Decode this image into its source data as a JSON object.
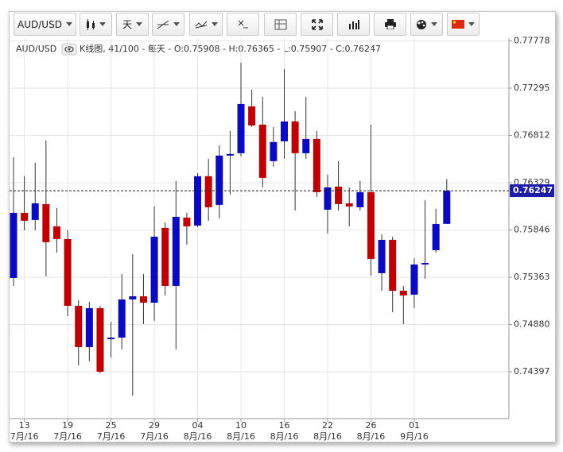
{
  "toolbar": {
    "symbol": "AUD/USD",
    "period": "天"
  },
  "chart_data": {
    "type": "candlestick",
    "symbol": "AUD/USD",
    "info": "K线图, 41/100 - 每天 - O:0.75908 - H:0.76365 - L:0.75907 - C:0.76247",
    "categories": [
      null,
      "13",
      null,
      null,
      null,
      "19",
      null,
      null,
      null,
      "25",
      null,
      null,
      null,
      "29",
      null,
      null,
      null,
      "04",
      null,
      null,
      null,
      "10",
      null,
      null,
      null,
      "16",
      null,
      null,
      null,
      "22",
      null,
      null,
      null,
      "26",
      null,
      null,
      null,
      "01",
      null,
      null,
      null
    ],
    "months": [
      null,
      "7月/16",
      null,
      null,
      null,
      "7月/16",
      null,
      null,
      null,
      "7月/16",
      null,
      null,
      null,
      "7月/16",
      null,
      null,
      null,
      "8月/16",
      null,
      null,
      null,
      "8月/16",
      null,
      null,
      null,
      "8月/16",
      null,
      null,
      null,
      "8月/16",
      null,
      null,
      null,
      "8月/16",
      null,
      null,
      null,
      "9月/16",
      null,
      null,
      null
    ],
    "open": [
      0.75355,
      0.76021,
      0.75948,
      0.7611,
      0.75883,
      0.75753,
      0.75071,
      0.74649,
      0.75047,
      0.7473,
      0.74746,
      0.75136,
      0.75168,
      0.75103,
      0.75867,
      0.75274,
      0.75972,
      0.75891,
      0.76395,
      0.76102,
      0.76606,
      0.7663,
      0.77109,
      0.76922,
      0.76549,
      0.76752,
      0.76955,
      0.7663,
      0.76776,
      0.76053,
      0.76289,
      0.76118,
      0.76078,
      0.76232,
      0.75404,
      0.75745,
      0.75225,
      0.75185,
      0.75493,
      0.75639,
      0.75908
    ],
    "high": [
      0.76589,
      0.76395,
      0.76533,
      0.7676,
      0.7607,
      0.75842,
      0.75128,
      0.75112,
      0.75071,
      0.74909,
      0.75396,
      0.75599,
      0.75396,
      0.76086,
      0.75924,
      0.76346,
      0.76021,
      0.76427,
      0.76573,
      0.76711,
      0.76857,
      0.77556,
      0.7728,
      0.77207,
      0.76898,
      0.77491,
      0.7706,
      0.77207,
      0.76857,
      0.76411,
      0.76549,
      0.76281,
      0.76346,
      0.76922,
      0.75802,
      0.75777,
      0.75274,
      0.75558,
      0.76151,
      0.76062,
      0.76365
    ],
    "low": [
      0.75274,
      0.75842,
      0.75842,
      0.75371,
      0.75615,
      0.74965,
      0.74462,
      0.74503,
      0.74381,
      0.74543,
      0.74624,
      0.74153,
      0.74884,
      0.74917,
      0.75177,
      0.74624,
      0.75696,
      0.75875,
      0.7594,
      0.75964,
      0.76208,
      0.76597,
      0.76898,
      0.76281,
      0.76492,
      0.76573,
      0.76045,
      0.76573,
      0.76183,
      0.7581,
      0.76045,
      0.75883,
      0.76045,
      0.7538,
      0.75225,
      0.75006,
      0.74884,
      0.75047,
      0.75347,
      0.75615,
      0.75907
    ],
    "close": [
      0.76021,
      0.7594,
      0.76118,
      0.75721,
      0.75753,
      0.75071,
      0.74649,
      0.75047,
      0.74397,
      0.74746,
      0.75136,
      0.75168,
      0.75103,
      0.75777,
      0.75274,
      0.7598,
      0.75883,
      0.76395,
      0.76078,
      0.76606,
      0.76622,
      0.77133,
      0.76914,
      0.76378,
      0.76744,
      0.76955,
      0.7663,
      0.76776,
      0.76232,
      0.76281,
      0.7611,
      0.76086,
      0.76232,
      0.7555,
      0.75745,
      0.75225,
      0.75177,
      0.75493,
      0.75509,
      0.75907,
      0.76247
    ],
    "up_color": "#0a0ac0",
    "down_color": "#c00000",
    "current_price": 0.76247,
    "current_price_color": "#1c1caa",
    "ylim": [
      0.73918,
      0.77806
    ],
    "yticks": [
      {
        "value": 0.74397,
        "label": "0.74397"
      },
      {
        "value": 0.7488,
        "label": "0.74880"
      },
      {
        "value": 0.75363,
        "label": "0.75363"
      },
      {
        "value": 0.75846,
        "label": "0.75846"
      },
      {
        "value": 0.76329,
        "label": "0.76329"
      },
      {
        "value": 0.76812,
        "label": "0.76812"
      },
      {
        "value": 0.77295,
        "label": "0.77295"
      },
      {
        "value": 0.77778,
        "label": "0.77778"
      }
    ],
    "grid": true
  }
}
